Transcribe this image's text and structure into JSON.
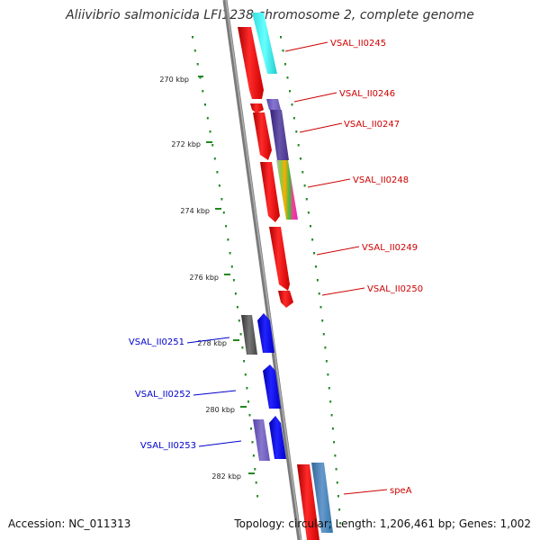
{
  "title": "Aliivibrio salmonicida LFI1238 chromosome 2, complete genome",
  "footer": {
    "accession": "Accession: NC_011313",
    "stats": "Topology: circular; Length: 1,206,461 bp; Genes: 1,002"
  },
  "ruler_labels": [
    "270 kbp",
    "272 kbp",
    "274 kbp",
    "276 kbp",
    "278 kbp",
    "280 kbp",
    "282 kbp"
  ],
  "gene_labels_forward": [
    "VSAL_II0245",
    "VSAL_II0246",
    "VSAL_II0247",
    "VSAL_II0248",
    "VSAL_II0249",
    "VSAL_II0250",
    "speA"
  ],
  "gene_labels_reverse": [
    "VSAL_II0251",
    "VSAL_II0252",
    "VSAL_II0253"
  ],
  "colors": {
    "forward_label": "#cc0000",
    "reverse_label": "#0000cc",
    "forward_gene": "#ff0000",
    "reverse_gene": "#0000ee",
    "backbone": "#888888",
    "ticks": "#228822"
  }
}
